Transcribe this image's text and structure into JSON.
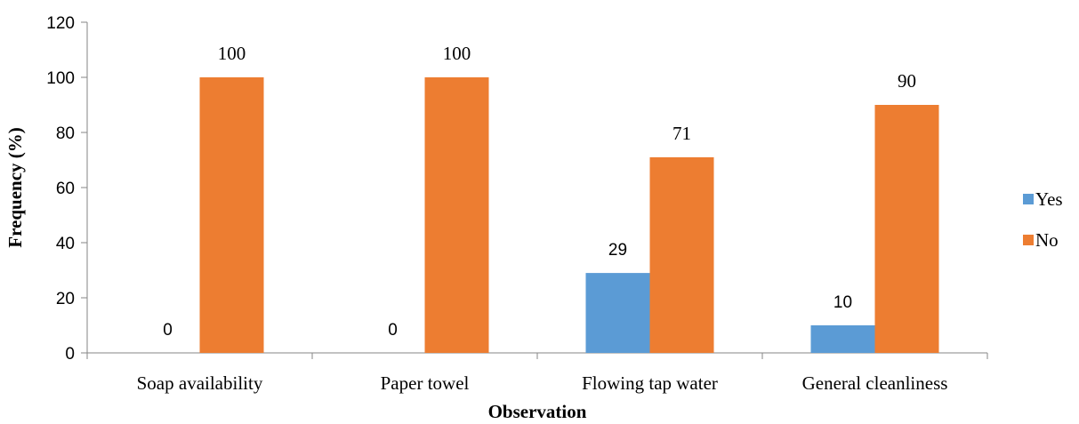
{
  "chart_data": {
    "type": "bar",
    "title": "",
    "xlabel": "Observation",
    "ylabel": "Frequency (%)",
    "ylim": [
      0,
      120
    ],
    "yticks": [
      0,
      20,
      40,
      60,
      80,
      100,
      120
    ],
    "categories": [
      "Soap availability",
      "Paper towel",
      "Flowing tap water",
      "General cleanliness"
    ],
    "series": [
      {
        "name": "Yes",
        "color": "#5B9BD5",
        "values": [
          0,
          0,
          29,
          10
        ]
      },
      {
        "name": "No",
        "color": "#ED7D31",
        "values": [
          100,
          100,
          71,
          90
        ]
      }
    ],
    "legend_position": "right",
    "grid": false
  }
}
